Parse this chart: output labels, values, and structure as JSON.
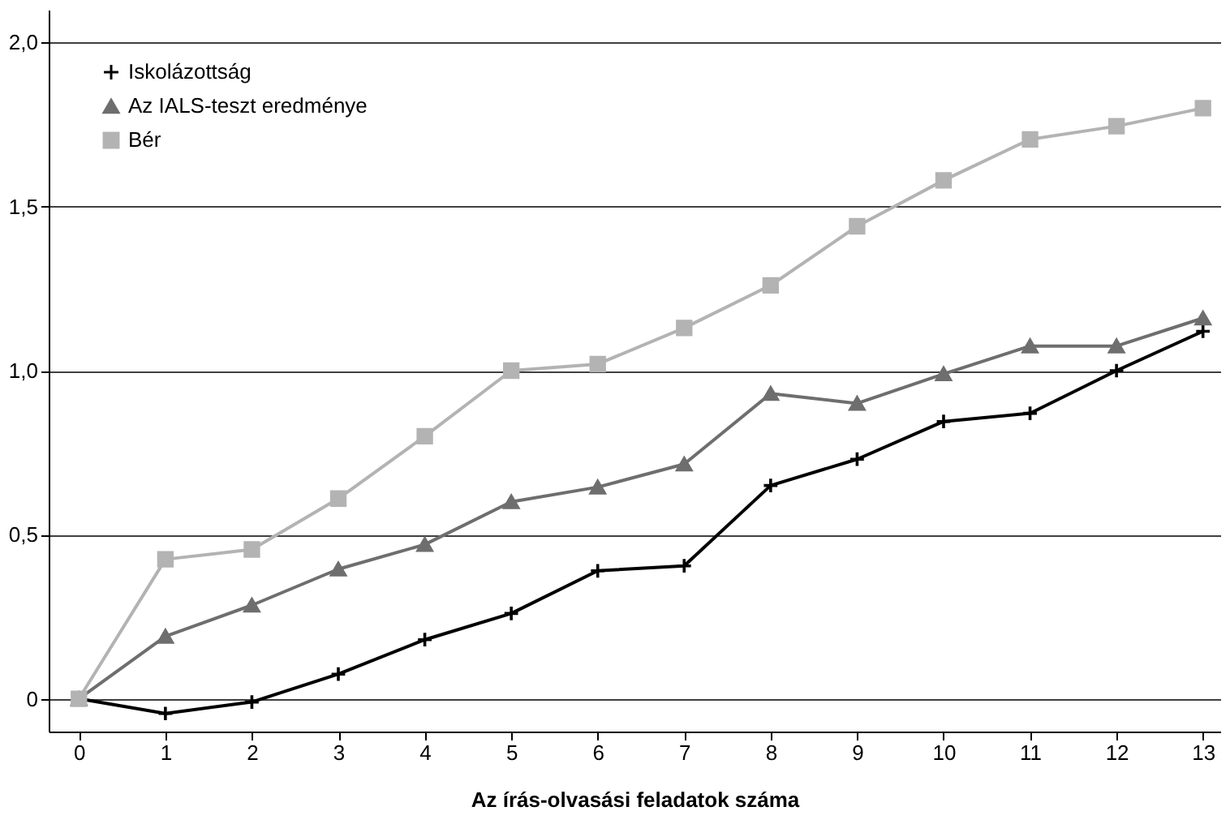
{
  "chart_data": {
    "type": "line",
    "xlabel": "Az írás-olvasási feladatok száma",
    "x": [
      0,
      1,
      2,
      3,
      4,
      5,
      6,
      7,
      8,
      9,
      10,
      11,
      12,
      13
    ],
    "series": [
      {
        "name": "Iskolázottság",
        "color": "#000000",
        "marker": "cross",
        "values": [
          0,
          -0.045,
          -0.01,
          0.075,
          0.18,
          0.26,
          0.39,
          0.405,
          0.65,
          0.73,
          0.845,
          0.87,
          1.0,
          1.12
        ]
      },
      {
        "name": "Az IALS-teszt eredménye",
        "color": "#6e6e6e",
        "marker": "triangle",
        "values": [
          0,
          0.19,
          0.285,
          0.395,
          0.47,
          0.6,
          0.645,
          0.715,
          0.93,
          0.9,
          0.99,
          1.075,
          1.075,
          1.16
        ]
      },
      {
        "name": "Bér",
        "color": "#b3b3b3",
        "marker": "square",
        "values": [
          0,
          0.425,
          0.455,
          0.61,
          0.8,
          1.0,
          1.02,
          1.13,
          1.26,
          1.44,
          1.58,
          1.705,
          1.745,
          1.8
        ]
      }
    ],
    "xlim": [
      -0.35,
      13.2
    ],
    "xticks": [
      0,
      1,
      2,
      3,
      4,
      5,
      6,
      7,
      8,
      9,
      10,
      11,
      12,
      13
    ],
    "ylim": [
      -0.1,
      2.1
    ],
    "yticks": [
      0,
      {
        "value": 0.5,
        "label": "0,5"
      },
      {
        "value": 1,
        "label": "1,0"
      },
      {
        "value": 1.5,
        "label": "1,5"
      },
      {
        "value": 2,
        "label": "2,0"
      }
    ],
    "grid": "y",
    "legend": "top left",
    "line_style": "solid"
  }
}
